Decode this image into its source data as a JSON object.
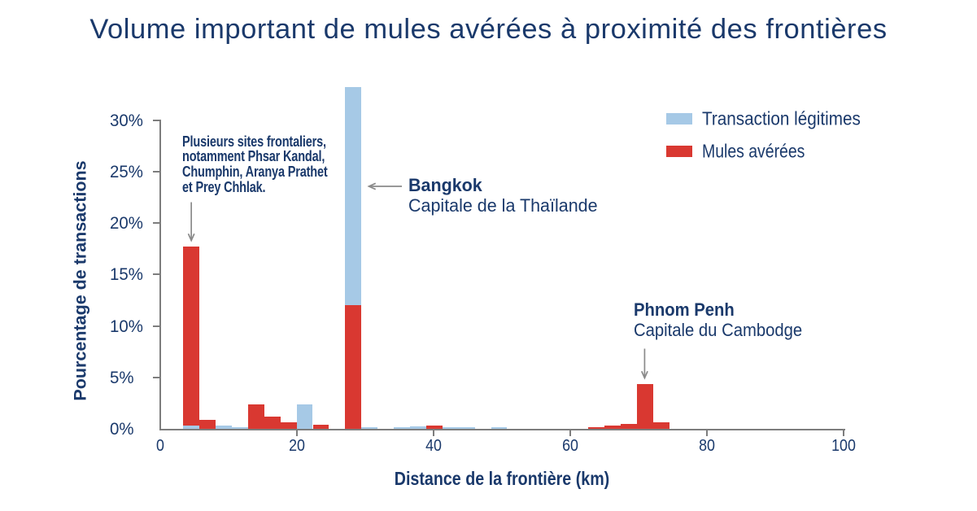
{
  "title": "Volume important de mules avérées à proximité des frontières",
  "colors": {
    "legitimate_blue": "#a6c9e6",
    "mule_red": "#d93831",
    "text_navy": "#1a396b",
    "axis_gray": "#7d7d7d",
    "arrow_gray": "#8a8a8a"
  },
  "legend": {
    "items": [
      {
        "label": "Transaction légitimes",
        "color": "#a6c9e6",
        "series_key": "legitimate"
      },
      {
        "label": "Mules avérées",
        "color": "#d93831",
        "series_key": "mules"
      }
    ]
  },
  "chart_data": {
    "type": "bar",
    "subtype": "overlaid-histogram",
    "title": "Volume important de mules avérées à proximité des frontières",
    "xlabel": "Distance de la frontière (km)",
    "ylabel": "Pourcentage de transactions",
    "xlim": [
      0,
      100
    ],
    "ylim": [
      0,
      33.5
    ],
    "x_ticks": [
      0,
      20,
      40,
      60,
      80,
      100
    ],
    "x_tick_labels": [
      "0",
      "20",
      "40",
      "60",
      "80",
      "100"
    ],
    "y_ticks": [
      0,
      5,
      10,
      15,
      20,
      25,
      30
    ],
    "y_tick_labels": [
      "0%",
      "5%",
      "10%",
      "15%",
      "20%",
      "25%",
      "30%"
    ],
    "grid": false,
    "legend_position": "upper right",
    "bin_width_km": 2.37,
    "series": [
      {
        "name": "Transaction légitimes",
        "color": "#a6c9e6",
        "bars": [
          {
            "x": 3.41,
            "value": 0.3
          },
          {
            "x": 8.15,
            "value": 0.3
          },
          {
            "x": 10.52,
            "value": 0.15
          },
          {
            "x": 20.0,
            "value": 2.35
          },
          {
            "x": 27.11,
            "value": 33.2
          },
          {
            "x": 29.48,
            "value": 0.15
          },
          {
            "x": 34.22,
            "value": 0.15
          },
          {
            "x": 36.59,
            "value": 0.25
          },
          {
            "x": 38.96,
            "value": 0.0
          },
          {
            "x": 41.33,
            "value": 0.15
          },
          {
            "x": 43.7,
            "value": 0.15
          },
          {
            "x": 48.44,
            "value": 0.15
          }
        ]
      },
      {
        "name": "Mules avérées",
        "color": "#d93831",
        "bars": [
          {
            "x": 3.41,
            "value": 17.7
          },
          {
            "x": 5.78,
            "value": 0.85
          },
          {
            "x": 12.89,
            "value": 2.35
          },
          {
            "x": 15.26,
            "value": 1.2
          },
          {
            "x": 17.63,
            "value": 0.6
          },
          {
            "x": 22.37,
            "value": 0.4
          },
          {
            "x": 27.11,
            "value": 12.0
          },
          {
            "x": 38.96,
            "value": 0.35
          },
          {
            "x": 62.66,
            "value": 0.15
          },
          {
            "x": 65.03,
            "value": 0.35
          },
          {
            "x": 67.4,
            "value": 0.45
          },
          {
            "x": 69.77,
            "value": 4.35
          },
          {
            "x": 72.14,
            "value": 0.6
          }
        ]
      }
    ],
    "annotations": [
      {
        "id": "border-sites",
        "lines": [
          "Plusieurs sites frontaliers,",
          "notamment Phsar Kandal,",
          "Chumphin, Aranya Prathet",
          "et Prey Chhlak."
        ],
        "points_to_km": 4.6,
        "arrow": "down"
      },
      {
        "id": "bangkok",
        "lines": [
          "Bangkok",
          "Capitale de la Thaïlande"
        ],
        "points_to_km": 28.3,
        "arrow": "left"
      },
      {
        "id": "phnom-penh",
        "lines": [
          "Phnom Penh",
          "Capitale du Cambodge"
        ],
        "points_to_km": 70.9,
        "arrow": "down"
      }
    ]
  }
}
